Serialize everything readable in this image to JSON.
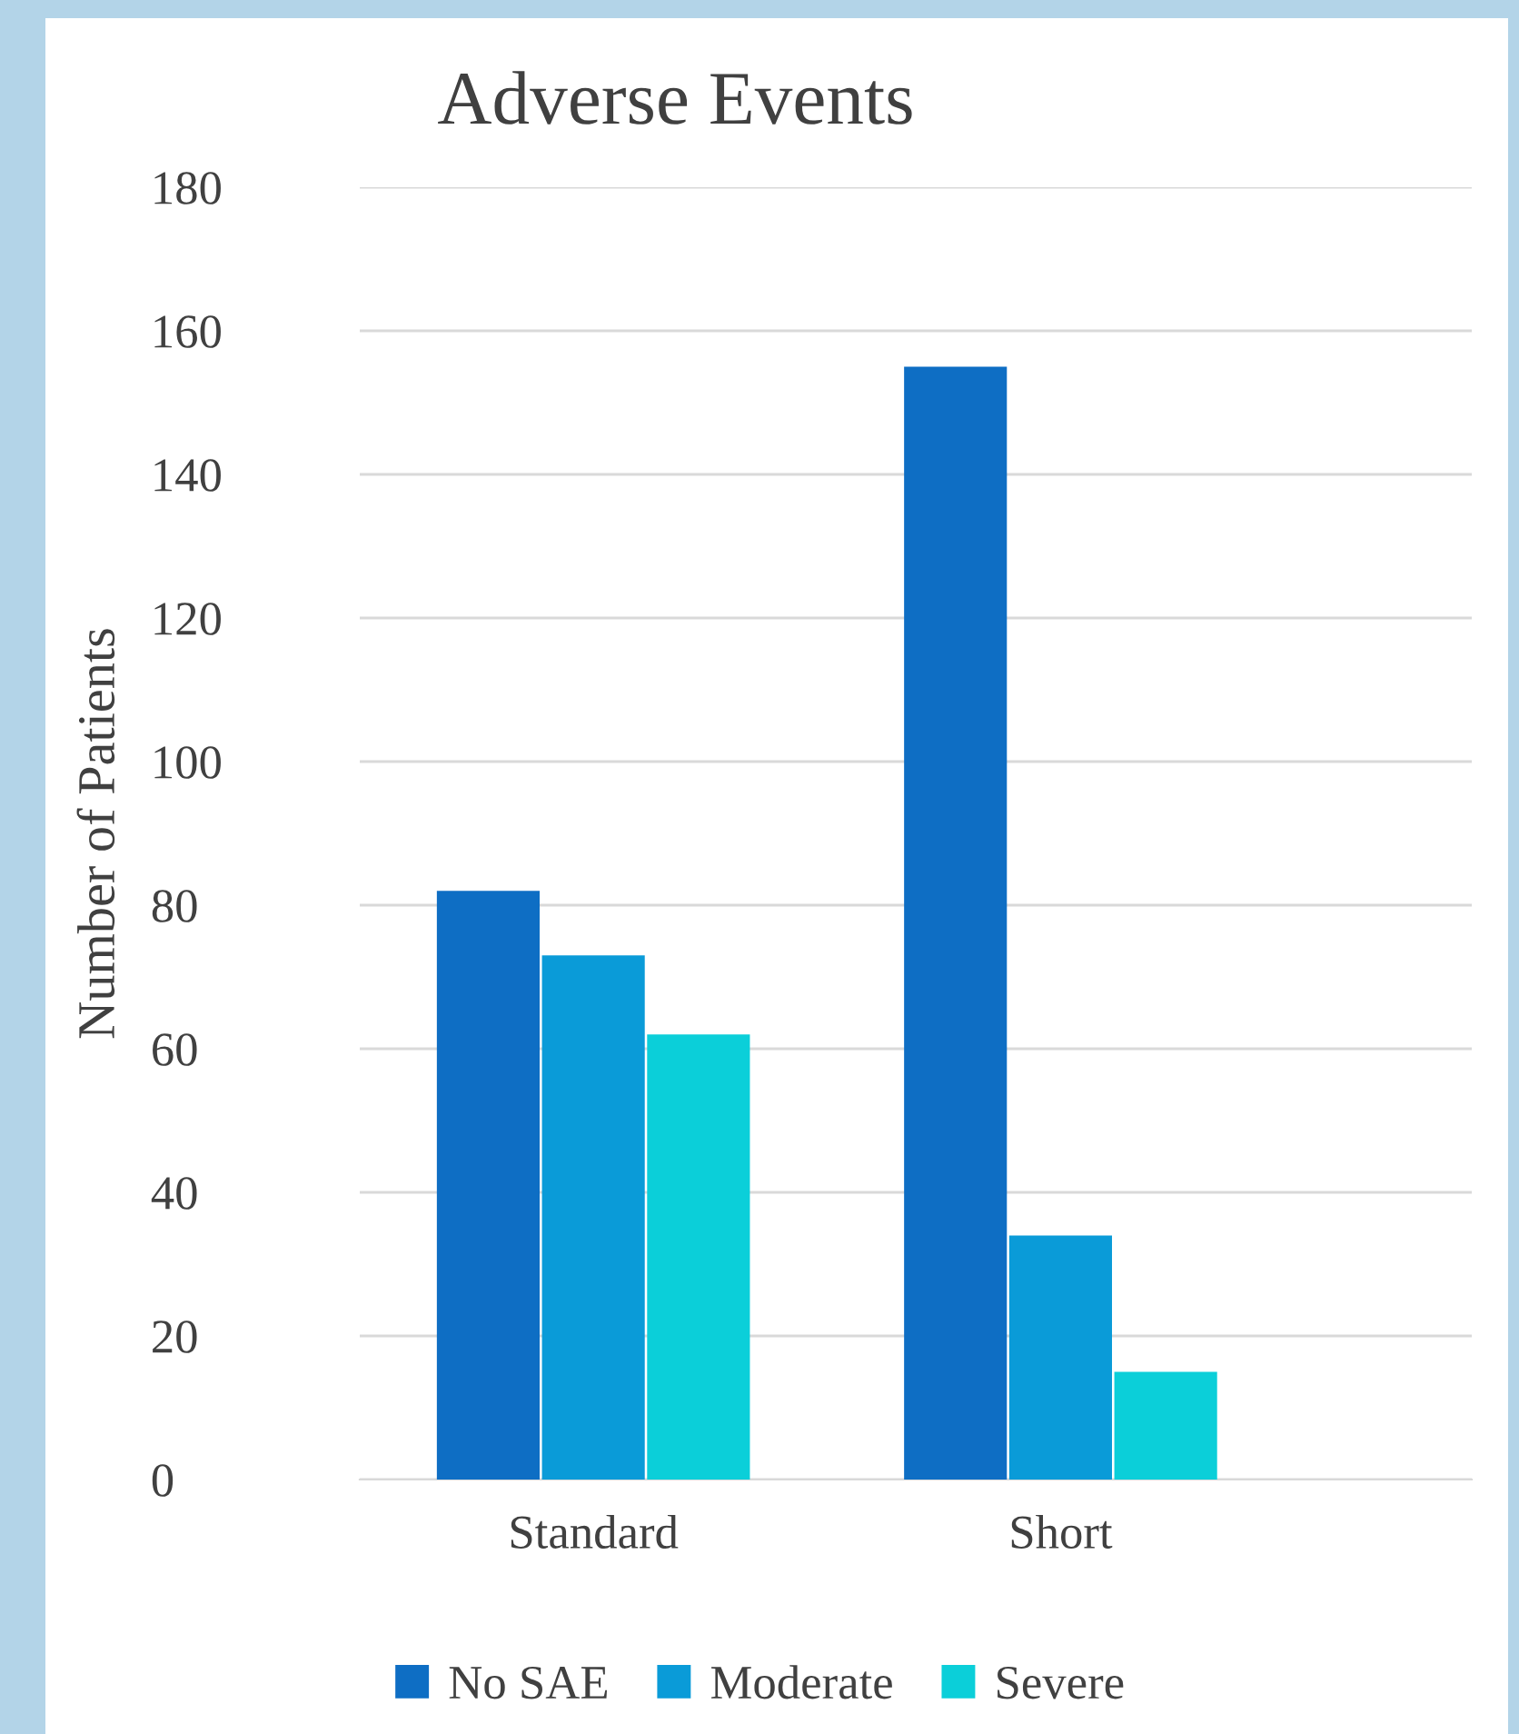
{
  "chart_data": {
    "type": "bar",
    "title": "Adverse Events",
    "ylabel": "Number of Patients",
    "categories": [
      "Standard",
      "Short"
    ],
    "series": [
      {
        "name": "No SAE",
        "color": "#0e6ec4",
        "values": [
          82,
          155
        ]
      },
      {
        "name": "Moderate",
        "color": "#0a9bd8",
        "values": [
          73,
          34
        ]
      },
      {
        "name": "Severe",
        "color": "#0bcfd9",
        "values": [
          62,
          15
        ]
      }
    ],
    "ylim": [
      0,
      180
    ],
    "yticks": [
      0,
      20,
      40,
      60,
      80,
      100,
      120,
      140,
      160,
      180
    ],
    "grid": "y",
    "legend": "bottom"
  }
}
